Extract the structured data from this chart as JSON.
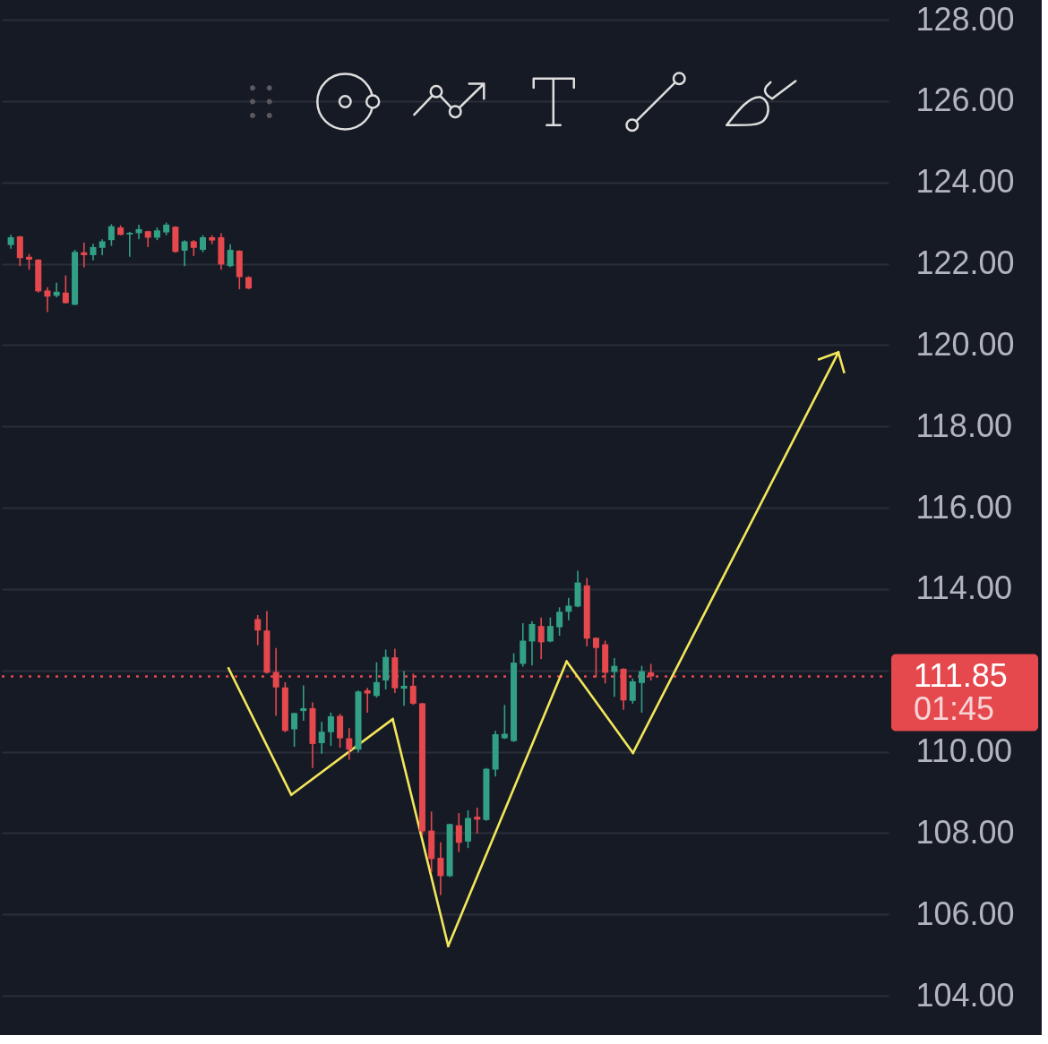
{
  "chart_data": {
    "type": "candlestick",
    "categories": [
      null,
      null,
      null,
      null,
      null,
      null,
      null,
      null,
      null,
      null,
      null,
      null,
      null,
      null,
      null,
      null,
      null,
      null,
      null,
      null,
      null,
      null,
      null,
      null,
      null,
      null,
      null,
      null,
      null,
      null,
      null,
      null,
      null,
      null,
      null,
      null,
      null,
      null,
      null,
      null,
      null,
      null,
      null,
      null,
      null,
      null,
      null,
      null,
      null,
      null,
      null,
      null,
      null,
      null,
      null,
      null,
      null,
      null,
      null,
      null,
      null,
      null,
      null,
      null,
      null,
      null,
      null,
      null,
      null,
      null,
      null,
      null,
      null,
      null,
      null,
      null,
      null,
      null,
      null,
      null,
      null,
      null,
      null,
      null,
      null,
      null,
      null,
      null,
      null,
      null,
      null,
      null,
      null,
      null,
      null,
      null
    ],
    "ohlc": [
      [
        122.46,
        122.71,
        122.37,
        122.65
      ],
      [
        122.67,
        122.68,
        121.94,
        122.14
      ],
      [
        122.17,
        122.24,
        121.85,
        122.1
      ],
      [
        122.1,
        122.11,
        121.29,
        121.32
      ],
      [
        121.34,
        121.42,
        120.81,
        121.19
      ],
      [
        121.21,
        121.53,
        121.17,
        121.31
      ],
      [
        121.29,
        121.71,
        121.02,
        121.03
      ],
      [
        120.99,
        122.34,
        120.98,
        122.29
      ],
      [
        122.28,
        122.52,
        121.91,
        122.21
      ],
      [
        122.21,
        122.49,
        122.08,
        122.41
      ],
      [
        122.39,
        122.6,
        122.21,
        122.55
      ],
      [
        122.58,
        122.97,
        122.44,
        122.92
      ],
      [
        122.89,
        122.94,
        122.7,
        122.71
      ],
      [
        122.72,
        122.78,
        122.17,
        122.76
      ],
      [
        122.75,
        122.96,
        122.6,
        122.85
      ],
      [
        122.8,
        122.81,
        122.41,
        122.64
      ],
      [
        122.64,
        122.89,
        122.58,
        122.82
      ],
      [
        122.77,
        123.01,
        122.7,
        122.96
      ],
      [
        122.91,
        122.92,
        122.27,
        122.29
      ],
      [
        122.32,
        122.58,
        121.94,
        122.55
      ],
      [
        122.55,
        122.58,
        122.19,
        122.39
      ],
      [
        122.34,
        122.7,
        122.28,
        122.65
      ],
      [
        122.65,
        122.7,
        122.48,
        122.57
      ],
      [
        122.65,
        122.75,
        121.85,
        121.98
      ],
      [
        121.94,
        122.48,
        121.91,
        122.34
      ],
      [
        122.32,
        122.33,
        121.37,
        121.67
      ],
      [
        121.67,
        121.69,
        121.37,
        121.39
      ],
      [
        113.26,
        113.36,
        112.62,
        112.98
      ],
      [
        112.98,
        113.46,
        111.92,
        111.94
      ],
      [
        111.96,
        112.55,
        110.88,
        111.58
      ],
      [
        111.58,
        111.71,
        110.48,
        110.51
      ],
      [
        110.55,
        110.96,
        110.12,
        110.95
      ],
      [
        111.0,
        111.63,
        110.76,
        111.07
      ],
      [
        111.07,
        111.21,
        109.6,
        110.19
      ],
      [
        110.21,
        110.73,
        109.95,
        110.49
      ],
      [
        110.48,
        110.96,
        110.14,
        110.87
      ],
      [
        110.88,
        110.93,
        110.1,
        110.33
      ],
      [
        110.33,
        110.58,
        109.8,
        110.05
      ],
      [
        110.05,
        111.51,
        109.98,
        111.48
      ],
      [
        111.51,
        111.57,
        110.96,
        111.43
      ],
      [
        111.37,
        112.2,
        111.33,
        111.71
      ],
      [
        111.75,
        112.51,
        111.53,
        112.33
      ],
      [
        112.32,
        112.53,
        111.44,
        111.56
      ],
      [
        111.55,
        111.98,
        111.13,
        111.62
      ],
      [
        111.62,
        111.92,
        111.15,
        111.18
      ],
      [
        111.19,
        111.2,
        107.94,
        108.04
      ],
      [
        108.06,
        108.53,
        107.04,
        107.36
      ],
      [
        107.39,
        107.77,
        106.47,
        106.94
      ],
      [
        106.94,
        108.23,
        106.92,
        108.22
      ],
      [
        108.19,
        108.49,
        107.53,
        107.76
      ],
      [
        107.79,
        108.56,
        107.63,
        108.37
      ],
      [
        108.4,
        108.62,
        107.99,
        108.33
      ],
      [
        108.32,
        109.6,
        108.3,
        109.58
      ],
      [
        109.56,
        110.51,
        109.39,
        110.43
      ],
      [
        110.33,
        111.15,
        110.31,
        110.44
      ],
      [
        110.26,
        112.42,
        110.24,
        112.19
      ],
      [
        112.16,
        113.16,
        112.09,
        112.73
      ],
      [
        112.71,
        113.21,
        112.12,
        113.14
      ],
      [
        113.09,
        113.3,
        112.28,
        112.69
      ],
      [
        112.71,
        113.3,
        112.69,
        113.09
      ],
      [
        113.06,
        113.55,
        112.85,
        113.44
      ],
      [
        113.44,
        113.78,
        113.23,
        113.59
      ],
      [
        113.57,
        114.45,
        113.55,
        114.16
      ],
      [
        114.09,
        114.27,
        112.59,
        112.78
      ],
      [
        112.8,
        112.81,
        111.82,
        112.55
      ],
      [
        112.64,
        112.73,
        111.68,
        111.94
      ],
      [
        111.96,
        112.3,
        111.35,
        112.11
      ],
      [
        112.04,
        112.05,
        111.03,
        111.26
      ],
      [
        111.25,
        111.8,
        111.18,
        111.73
      ],
      [
        111.69,
        112.11,
        110.96,
        111.98
      ],
      [
        111.95,
        112.16,
        111.75,
        111.85
      ],
      null,
      null,
      null,
      null,
      null,
      null,
      null,
      null,
      null,
      null,
      null,
      null,
      null,
      null,
      null,
      null,
      null,
      null,
      null,
      null,
      null,
      null,
      null,
      null,
      null
    ],
    "colors": [
      "#31a085",
      "#e5484d",
      "#e5484d",
      "#e5484d",
      "#e5484d",
      "#31a085",
      "#e5484d",
      "#31a085",
      "#e5484d",
      "#31a085",
      "#31a085",
      "#31a085",
      "#e5484d",
      "#31a085",
      "#31a085",
      "#e5484d",
      "#31a085",
      "#31a085",
      "#e5484d",
      "#31a085",
      "#e5484d",
      "#31a085",
      "#e5484d",
      "#e5484d",
      "#31a085",
      "#e5484d",
      "#e5484d",
      "#e5484d",
      "#e5484d",
      "#e5484d",
      "#e5484d",
      "#31a085",
      "#31a085",
      "#e5484d",
      "#31a085",
      "#31a085",
      "#e5484d",
      "#e5484d",
      "#31a085",
      "#e5484d",
      "#31a085",
      "#31a085",
      "#e5484d",
      "#31a085",
      "#e5484d",
      "#e5484d",
      "#e5484d",
      "#e5484d",
      "#31a085",
      "#e5484d",
      "#31a085",
      "#e5484d",
      "#31a085",
      "#31a085",
      "#31a085",
      "#31a085",
      "#31a085",
      "#31a085",
      "#e5484d",
      "#31a085",
      "#31a085",
      "#31a085",
      "#31a085",
      "#e5484d",
      "#e5484d",
      "#e5484d",
      "#31a085",
      "#e5484d",
      "#31a085",
      "#31a085",
      "#e5484d",
      null,
      null,
      null,
      null,
      null,
      null,
      null,
      null,
      null,
      null,
      null,
      null,
      null,
      null,
      null,
      null,
      null,
      null,
      null,
      null,
      null,
      null,
      null,
      null,
      null
    ],
    "ylim": [
      103.12,
      128
    ],
    "yticks": [
      {
        "value": 104,
        "label": "104.00"
      },
      {
        "value": 106,
        "label": "106.00"
      },
      {
        "value": 108,
        "label": "108.00"
      },
      {
        "value": 110,
        "label": "110.00"
      },
      {
        "value": 112,
        "label": null
      },
      {
        "value": 114,
        "label": "114.00"
      },
      {
        "value": 116,
        "label": "116.00"
      },
      {
        "value": 118,
        "label": "118.00"
      },
      {
        "value": 120,
        "label": "120.00"
      },
      {
        "value": 122,
        "label": "122.00"
      },
      {
        "value": 124,
        "label": "124.00"
      },
      {
        "value": 126,
        "label": "126.00"
      },
      {
        "value": 128,
        "label": "128.00"
      }
    ],
    "grid": "y",
    "tick_labels": "y",
    "ref_lines": [
      {
        "axis": "y",
        "value": 111.85,
        "label": "111.85",
        "color": "#e5484d",
        "line_style": "dotted"
      }
    ],
    "annotations": [
      "01:45"
    ]
  }
}
